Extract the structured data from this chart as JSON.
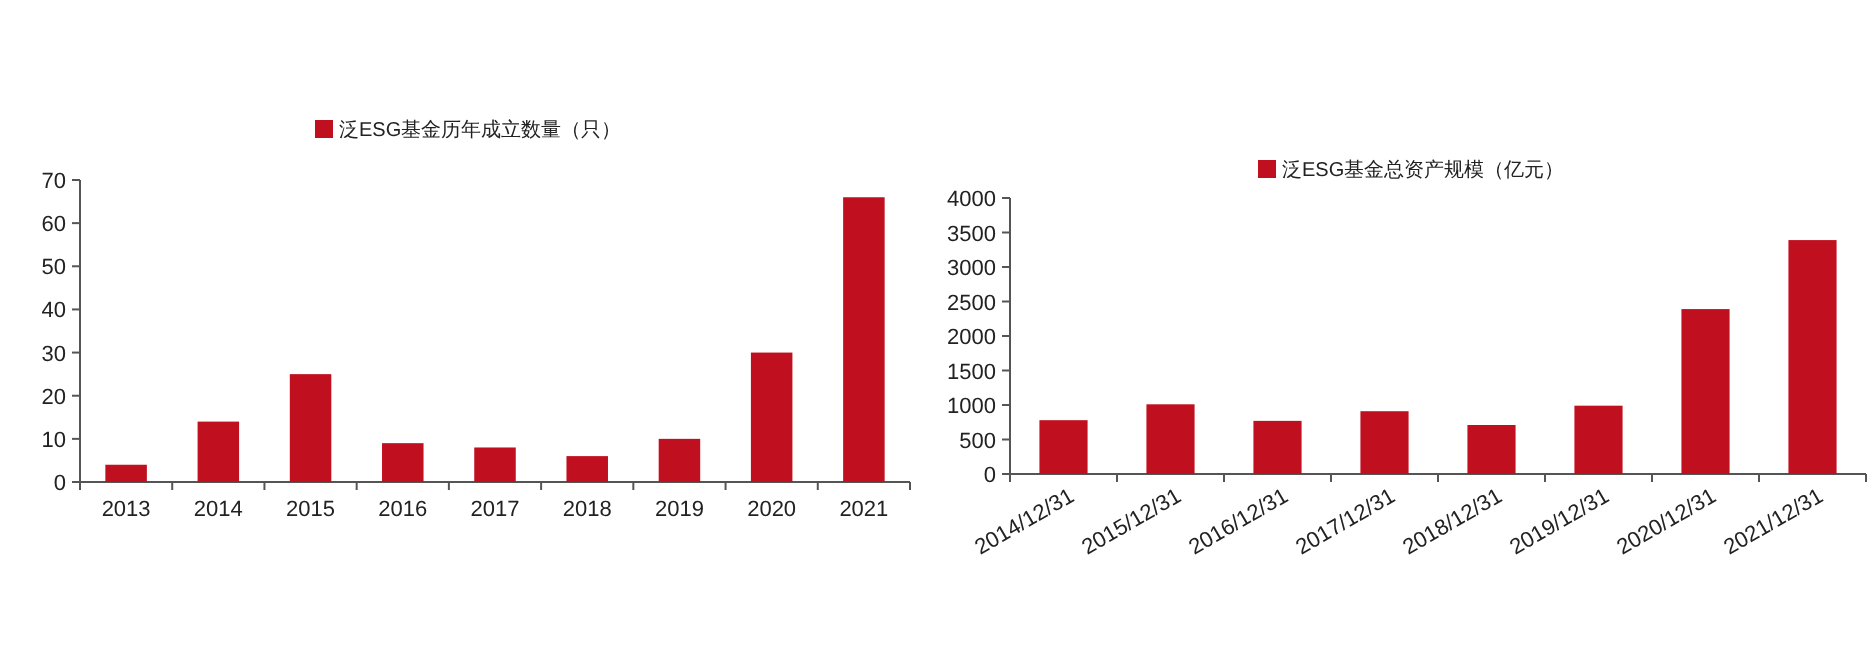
{
  "chart_data": [
    {
      "type": "bar",
      "categories": [
        "2013",
        "2014",
        "2015",
        "2016",
        "2017",
        "2018",
        "2019",
        "2020",
        "2021"
      ],
      "series": [
        {
          "name": "泛ESG基金历年成立数量（只）",
          "color": "#c00f1e",
          "values": [
            4,
            14,
            25,
            9,
            8,
            6,
            10,
            30,
            66
          ]
        }
      ],
      "ylim": [
        0,
        70
      ],
      "yticks": [
        0,
        10,
        20,
        30,
        40,
        50,
        60,
        70
      ],
      "legend": "top"
    },
    {
      "type": "bar",
      "categories": [
        "2014/12/31",
        "2015/12/31",
        "2016/12/31",
        "2017/12/31",
        "2018/12/31",
        "2019/12/31",
        "2020/12/31",
        "2021/12/31"
      ],
      "series": [
        {
          "name": "泛ESG基金总资产规模（亿元）",
          "color": "#c00f1e",
          "values": [
            780,
            1010,
            770,
            910,
            710,
            990,
            2390,
            3390
          ]
        }
      ],
      "ylim": [
        0,
        4000
      ],
      "yticks": [
        0,
        500,
        1000,
        1500,
        2000,
        2500,
        3000,
        3500,
        4000
      ],
      "legend": "top"
    }
  ]
}
